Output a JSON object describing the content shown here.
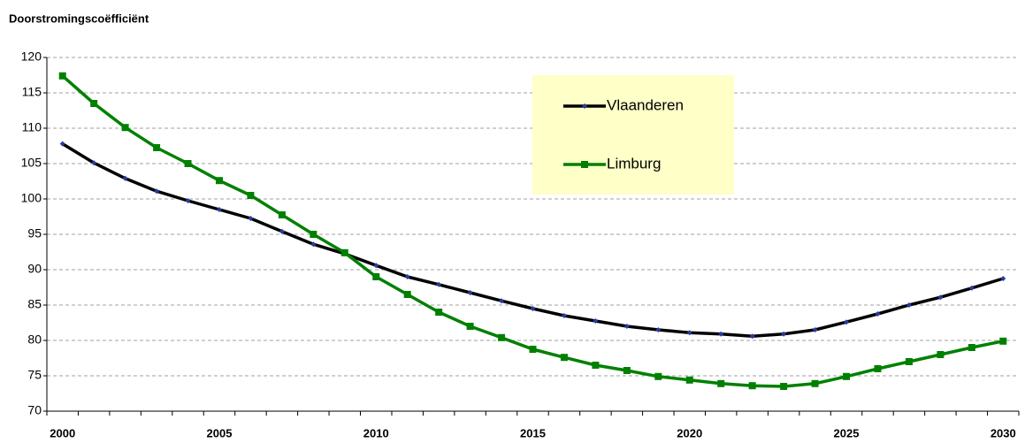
{
  "chart_data": {
    "type": "line",
    "title": "Doorstromingscoëfficiënt",
    "categories": [
      "2000",
      null,
      null,
      null,
      null,
      "2005",
      null,
      null,
      null,
      null,
      "2010",
      null,
      null,
      null,
      null,
      "2015",
      null,
      null,
      null,
      null,
      "2020",
      null,
      null,
      null,
      null,
      "2025",
      null,
      null,
      null,
      null,
      "2030"
    ],
    "series": [
      {
        "name": "Vlaanderen",
        "color": "#000000",
        "marker_color": "#2a3aa0",
        "marker": "diamond",
        "values": [
          107.8,
          105.1,
          102.9,
          101.1,
          99.75,
          98.5,
          97.25,
          95.4,
          93.6,
          92.25,
          90.6,
          89.0,
          87.9,
          86.75,
          85.6,
          84.5,
          83.5,
          82.75,
          82.0,
          81.5,
          81.1,
          80.9,
          80.6,
          80.9,
          81.5,
          82.6,
          83.75,
          85.0,
          86.1,
          87.4,
          88.75
        ]
      },
      {
        "name": "Limburg",
        "color": "#008000",
        "marker_color": "#008000",
        "marker": "square",
        "values": [
          117.4,
          113.5,
          110.1,
          107.25,
          105.0,
          102.6,
          100.5,
          97.75,
          95.0,
          92.4,
          89.0,
          86.5,
          84.0,
          82.0,
          80.4,
          78.75,
          77.6,
          76.5,
          75.75,
          74.9,
          74.4,
          73.9,
          73.6,
          73.5,
          73.9,
          74.9,
          76.0,
          77.0,
          78.0,
          79.0,
          79.9
        ]
      }
    ],
    "ylim": [
      70,
      120
    ],
    "yticks": [
      70,
      75,
      80,
      85,
      90,
      95,
      100,
      105,
      110,
      115,
      120
    ],
    "grid": true,
    "legend": "upper center",
    "legend_background": "#ffffc8"
  }
}
